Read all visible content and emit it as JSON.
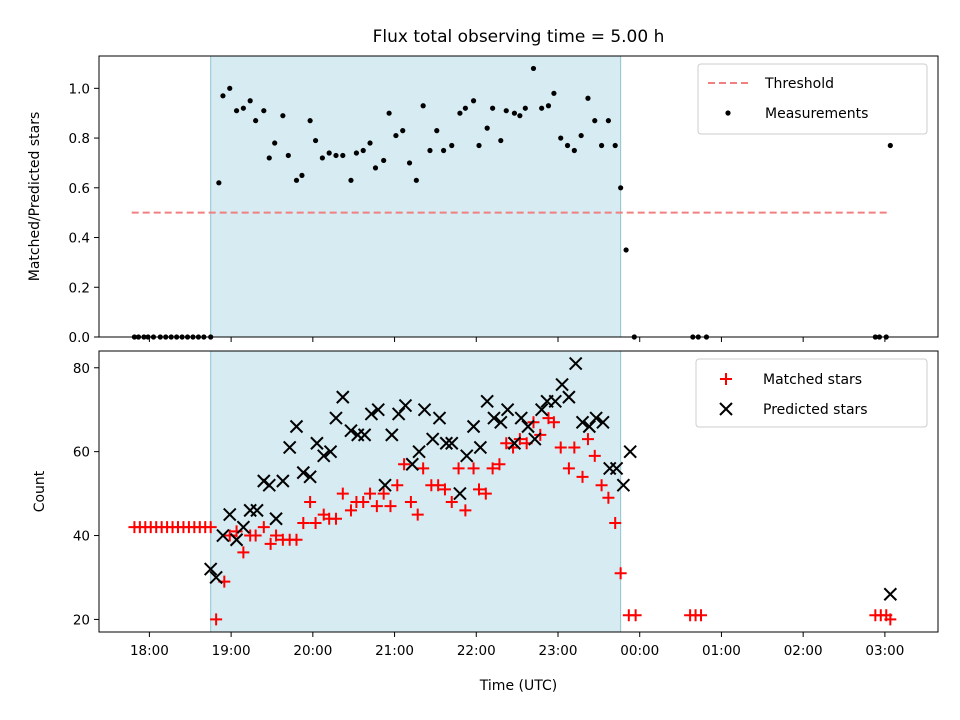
{
  "chart_data": [
    {
      "type": "scatter",
      "title": "Flux total observing time = 5.00 h",
      "xlabel": "",
      "ylabel": "Matched/Predicted stars",
      "ylim": [
        0,
        1.13
      ],
      "yticks": [
        0.0,
        0.2,
        0.4,
        0.6,
        0.8,
        1.0
      ],
      "ytick_labels": [
        "0.0",
        "0.2",
        "0.4",
        "0.6",
        "0.8",
        "1.0"
      ],
      "xlim": [
        "17:23",
        "03:39"
      ],
      "xticks": [
        "18:00",
        "19:00",
        "20:00",
        "21:00",
        "22:00",
        "23:00",
        "00:00",
        "01:00",
        "02:00",
        "03:00"
      ],
      "shaded_interval": [
        "18:45",
        "23:46"
      ],
      "legend_position": "top-right",
      "series": [
        {
          "name": "Threshold",
          "style": "dashed-line",
          "color": "#f08080",
          "x": [
            "17:47",
            "03:04"
          ],
          "y": [
            0.5,
            0.5
          ]
        },
        {
          "name": "Measurements",
          "style": "dot",
          "color": "#000000",
          "x": [
            "17:49",
            "17:52",
            "17:56",
            "17:59",
            "18:03",
            "18:08",
            "18:12",
            "18:16",
            "18:20",
            "18:24",
            "18:28",
            "18:32",
            "18:36",
            "18:40",
            "18:45",
            "18:51",
            "18:54",
            "18:59",
            "19:04",
            "19:09",
            "19:14",
            "19:18",
            "19:24",
            "19:28",
            "19:32",
            "19:38",
            "19:42",
            "19:48",
            "19:52",
            "19:58",
            "20:02",
            "20:07",
            "20:12",
            "20:17",
            "20:22",
            "20:28",
            "20:32",
            "20:37",
            "20:42",
            "20:46",
            "20:52",
            "20:56",
            "21:01",
            "21:06",
            "21:11",
            "21:16",
            "21:21",
            "21:26",
            "21:31",
            "21:36",
            "21:42",
            "21:48",
            "21:52",
            "21:58",
            "22:02",
            "22:08",
            "22:12",
            "22:18",
            "22:22",
            "22:28",
            "22:32",
            "22:36",
            "22:42",
            "22:48",
            "22:53",
            "22:57",
            "23:02",
            "23:07",
            "23:12",
            "23:17",
            "23:22",
            "23:27",
            "23:32",
            "23:37",
            "23:42",
            "23:46",
            "23:50",
            "23:56",
            "00:39",
            "00:43",
            "00:49",
            "02:53",
            "02:56",
            "03:01",
            "03:04"
          ],
          "y": [
            0,
            0,
            0,
            0,
            0,
            0,
            0,
            0,
            0,
            0,
            0,
            0,
            0,
            0,
            0,
            0.62,
            0.97,
            1.0,
            0.91,
            0.92,
            0.95,
            0.87,
            0.91,
            0.72,
            0.78,
            0.89,
            0.73,
            0.63,
            0.65,
            0.87,
            0.79,
            0.72,
            0.74,
            0.73,
            0.73,
            0.63,
            0.74,
            0.75,
            0.78,
            0.68,
            0.71,
            0.9,
            0.81,
            0.83,
            0.7,
            0.63,
            0.93,
            0.75,
            0.83,
            0.75,
            0.77,
            0.9,
            0.92,
            0.95,
            0.77,
            0.84,
            0.92,
            0.79,
            0.91,
            0.9,
            0.89,
            0.92,
            1.08,
            0.92,
            0.93,
            0.98,
            0.8,
            0.77,
            0.75,
            0.81,
            0.96,
            0.87,
            0.77,
            0.87,
            0.77,
            0.6,
            0.35,
            0,
            0,
            0,
            0,
            0,
            0,
            0,
            0.77
          ]
        }
      ]
    },
    {
      "type": "scatter",
      "title": "",
      "xlabel": "Time (UTC)",
      "ylabel": "Count",
      "ylim": [
        17,
        84
      ],
      "yticks": [
        20,
        40,
        60,
        80
      ],
      "ytick_labels": [
        "20",
        "40",
        "60",
        "80"
      ],
      "xlim": [
        "17:23",
        "03:39"
      ],
      "xticks": [
        "18:00",
        "19:00",
        "20:00",
        "21:00",
        "22:00",
        "23:00",
        "00:00",
        "01:00",
        "02:00",
        "03:00"
      ],
      "xtick_labels": [
        "18:00",
        "19:00",
        "20:00",
        "21:00",
        "22:00",
        "23:00",
        "00:00",
        "01:00",
        "02:00",
        "03:00"
      ],
      "shaded_interval": [
        "18:45",
        "23:46"
      ],
      "legend_position": "top-right",
      "series": [
        {
          "name": "Matched stars",
          "style": "plus",
          "color": "#ff0000",
          "x": [
            "17:49",
            "17:53",
            "17:57",
            "18:01",
            "18:05",
            "18:09",
            "18:13",
            "18:17",
            "18:21",
            "18:25",
            "18:29",
            "18:33",
            "18:37",
            "18:41",
            "18:45",
            "18:49",
            "18:55",
            "18:59",
            "19:04",
            "19:09",
            "19:14",
            "19:18",
            "19:24",
            "19:29",
            "19:33",
            "19:38",
            "19:43",
            "19:48",
            "19:53",
            "19:58",
            "20:02",
            "20:08",
            "20:12",
            "20:17",
            "20:22",
            "20:28",
            "20:32",
            "20:37",
            "20:42",
            "20:47",
            "20:52",
            "20:57",
            "21:02",
            "21:07",
            "21:12",
            "21:17",
            "21:21",
            "21:27",
            "21:32",
            "21:37",
            "21:42",
            "21:47",
            "21:52",
            "21:58",
            "22:02",
            "22:07",
            "22:12",
            "22:17",
            "22:22",
            "22:27",
            "22:32",
            "22:37",
            "22:42",
            "22:47",
            "22:53",
            "22:57",
            "23:02",
            "23:08",
            "23:12",
            "23:18",
            "23:22",
            "23:27",
            "23:32",
            "23:37",
            "23:42",
            "23:46",
            "23:52",
            "23:57",
            "00:37",
            "00:41",
            "00:45",
            "02:53",
            "02:57",
            "03:01",
            "03:04"
          ],
          "y": [
            42,
            42,
            42,
            42,
            42,
            42,
            42,
            42,
            42,
            42,
            42,
            42,
            42,
            42,
            42,
            20,
            29,
            40,
            41,
            36,
            40,
            40,
            42,
            38,
            40,
            39,
            39,
            39,
            43,
            48,
            43,
            45,
            44,
            44,
            50,
            46,
            48,
            48,
            50,
            47,
            50,
            47,
            52,
            57,
            48,
            45,
            56,
            52,
            52,
            51,
            48,
            56,
            46,
            56,
            51,
            50,
            56,
            57,
            62,
            61,
            63,
            62,
            67,
            64,
            68,
            67,
            61,
            56,
            61,
            54,
            63,
            59,
            52,
            49,
            43,
            31,
            21,
            21,
            21,
            21,
            21,
            21,
            21,
            21,
            20
          ]
        },
        {
          "name": "Predicted stars",
          "style": "x",
          "color": "#000000",
          "x": [
            "18:45",
            "18:49",
            "18:54",
            "18:59",
            "19:04",
            "19:09",
            "19:14",
            "19:19",
            "19:24",
            "19:28",
            "19:33",
            "19:38",
            "19:43",
            "19:48",
            "19:53",
            "19:58",
            "20:03",
            "20:08",
            "20:13",
            "20:17",
            "20:22",
            "20:28",
            "20:33",
            "20:38",
            "20:43",
            "20:48",
            "20:53",
            "20:58",
            "21:03",
            "21:08",
            "21:13",
            "21:18",
            "21:22",
            "21:28",
            "21:33",
            "21:38",
            "21:42",
            "21:48",
            "21:53",
            "21:58",
            "22:03",
            "22:08",
            "22:13",
            "22:18",
            "22:23",
            "22:28",
            "22:33",
            "22:38",
            "22:43",
            "22:48",
            "22:52",
            "22:58",
            "23:03",
            "23:08",
            "23:13",
            "23:18",
            "23:23",
            "23:28",
            "23:33",
            "23:38",
            "23:43",
            "23:48",
            "23:53",
            "03:04"
          ],
          "y": [
            32,
            30,
            40,
            45,
            39,
            42,
            46,
            46,
            53,
            52,
            44,
            53,
            61,
            66,
            55,
            54,
            62,
            59,
            60,
            68,
            73,
            65,
            64,
            64,
            69,
            70,
            52,
            64,
            69,
            71,
            57,
            60,
            70,
            63,
            68,
            62,
            62,
            50,
            59,
            66,
            61,
            72,
            68,
            67,
            70,
            62,
            68,
            66,
            63,
            70,
            72,
            72,
            76,
            73,
            81,
            67,
            66,
            68,
            67,
            56,
            56,
            52,
            60,
            26
          ]
        }
      ]
    }
  ]
}
